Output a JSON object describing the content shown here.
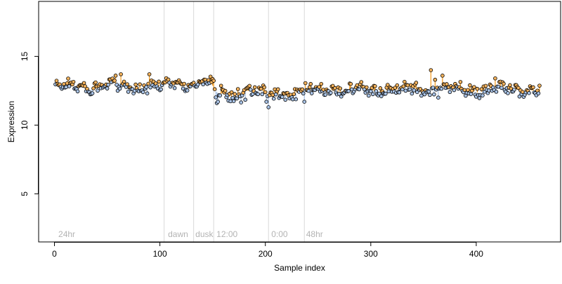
{
  "chart_data": {
    "type": "scatter",
    "xlabel": "Sample index",
    "ylabel": "Expression",
    "xlim": [
      -15,
      480
    ],
    "ylim": [
      1.5,
      19
    ],
    "x_ticks": [
      0,
      100,
      200,
      300,
      400
    ],
    "y_ticks": [
      5,
      10,
      15
    ],
    "grid": false,
    "phase_lines": [
      104,
      132,
      151,
      203,
      237
    ],
    "phase_labels": [
      {
        "x": 3,
        "label": "24hr"
      },
      {
        "x": 107,
        "label": "dawn"
      },
      {
        "x": 133,
        "label": "dusk"
      },
      {
        "x": 153,
        "label": "12:00"
      },
      {
        "x": 205,
        "label": "0:00"
      },
      {
        "x": 238,
        "label": "48hr"
      }
    ],
    "colors": {
      "blue_fill": "#a9c3e6",
      "orange_fill": "#f4b25c",
      "blue_stem": "#a9c3e6",
      "orange_stem": "#f59a1a",
      "phase_line": "#d9d9d9",
      "phase_text": "#b3b3b3",
      "point_edge": "#000000"
    },
    "segments": [
      {
        "start": 1,
        "end": 103,
        "base": 12.8,
        "amp": 0.35
      },
      {
        "start": 104,
        "end": 151,
        "base": 13.0,
        "amp": 0.3
      },
      {
        "start": 152,
        "end": 236,
        "base": 12.3,
        "amp": 0.45
      },
      {
        "start": 237,
        "end": 460,
        "base": 12.6,
        "amp": 0.35
      }
    ],
    "features": [
      {
        "x": 58,
        "y": 13.6
      },
      {
        "x": 63,
        "y": 13.7
      },
      {
        "x": 90,
        "y": 13.7
      },
      {
        "x": 154,
        "y": 11.6
      },
      {
        "x": 155,
        "y": 11.7
      },
      {
        "x": 201,
        "y": 11.7
      },
      {
        "x": 203,
        "y": 11.3
      },
      {
        "x": 237,
        "y": 11.7
      },
      {
        "x": 357,
        "y": 14.0
      },
      {
        "x": 361,
        "y": 13.3
      },
      {
        "x": 364,
        "y": 12.0
      },
      {
        "x": 368,
        "y": 13.6
      },
      {
        "x": 418,
        "y": 13.4
      }
    ]
  }
}
